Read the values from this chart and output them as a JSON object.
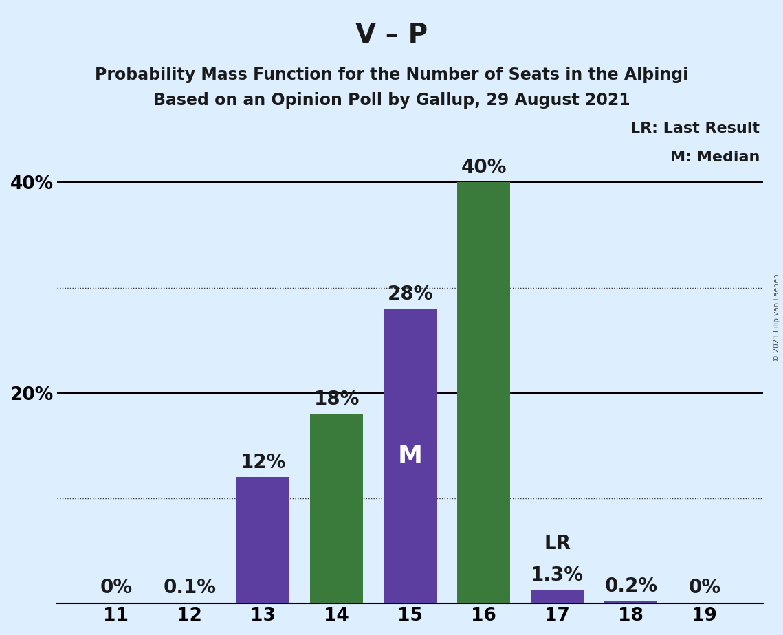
{
  "title_main": "V – P",
  "title_sub1": "Probability Mass Function for the Number of Seats in the Alþingi",
  "title_sub2": "Based on an Opinion Poll by Gallup, 29 August 2021",
  "copyright": "© 2021 Filip van Laenen",
  "seats": [
    11,
    12,
    13,
    14,
    15,
    16,
    17,
    18,
    19
  ],
  "values": [
    0.0,
    0.1,
    12.0,
    18.0,
    28.0,
    40.0,
    1.3,
    0.2,
    0.0
  ],
  "bar_colors": [
    "#5b3ea0",
    "#5b3ea0",
    "#5b3ea0",
    "#3a7a3a",
    "#5b3ea0",
    "#3a7a3a",
    "#5b3ea0",
    "#5b3ea0",
    "#5b3ea0"
  ],
  "labels": [
    "0%",
    "0.1%",
    "12%",
    "18%",
    "28%",
    "40%",
    "1.3%",
    "0.2%",
    "0%"
  ],
  "median_seat": 15,
  "lr_label": "LR",
  "lr_legend": "LR: Last Result",
  "m_legend": "M: Median",
  "background_color": "#ddeeff",
  "ylim": [
    0,
    47
  ],
  "solid_gridlines": [
    20,
    40
  ],
  "dotted_gridlines": [
    10,
    30
  ],
  "ytick_values": [
    0,
    20,
    40
  ],
  "bar_width": 0.72,
  "title_fontsize": 28,
  "subtitle_fontsize": 17,
  "tick_fontsize": 19,
  "legend_fontsize": 16,
  "annotation_fontsize": 20,
  "m_fontsize": 26
}
